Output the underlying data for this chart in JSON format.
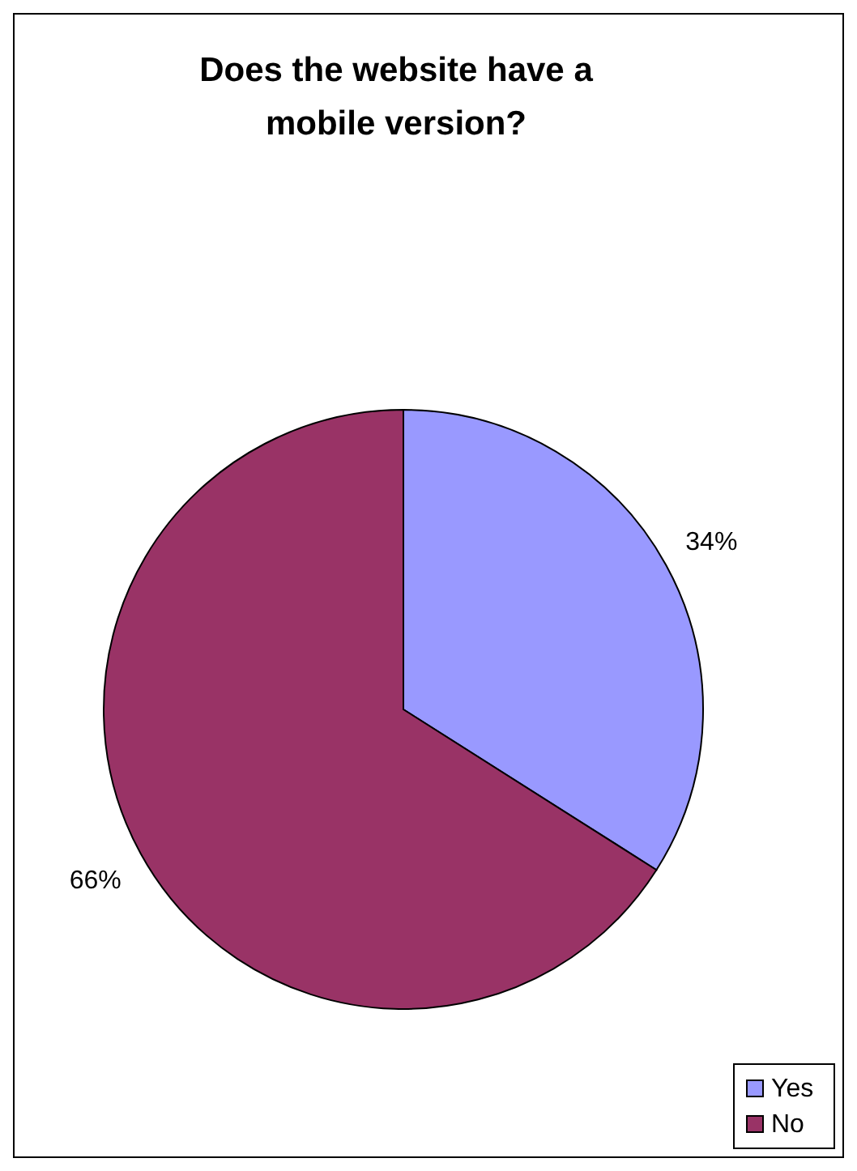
{
  "chart_data": {
    "type": "pie",
    "title": "Does the website have a mobile version?",
    "categories": [
      "Yes",
      "No"
    ],
    "values": [
      34,
      66
    ],
    "colors": [
      "#9999ff",
      "#993366"
    ],
    "value_labels": [
      "34%",
      "66%"
    ],
    "legend": "bottom right"
  }
}
